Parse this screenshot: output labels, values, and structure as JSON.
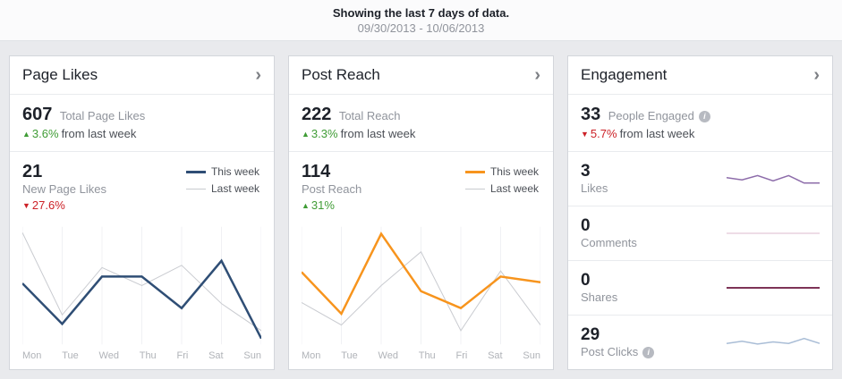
{
  "header": {
    "title": "Showing the last 7 days of data.",
    "date_range": "09/30/2013 - 10/06/2013"
  },
  "days": [
    "Mon",
    "Tue",
    "Wed",
    "Thu",
    "Fri",
    "Sat",
    "Sun"
  ],
  "legend": {
    "this_week": "This week",
    "last_week": "Last week"
  },
  "glyphs": {
    "chevron_right": "›",
    "up_arrow": "▲",
    "down_arrow": "▼",
    "info": "i"
  },
  "cards": {
    "page_likes": {
      "title": "Page Likes",
      "total": {
        "value": "607",
        "label": "Total Page Likes",
        "delta": "3.6%",
        "delta_suffix": "from last week",
        "direction": "up"
      },
      "weekly": {
        "value": "21",
        "label": "New Page Likes",
        "delta": "27.6%",
        "direction": "down"
      }
    },
    "post_reach": {
      "title": "Post Reach",
      "total": {
        "value": "222",
        "label": "Total Reach",
        "delta": "3.3%",
        "delta_suffix": "from last week",
        "direction": "up"
      },
      "weekly": {
        "value": "114",
        "label": "Post Reach",
        "delta": "31%",
        "direction": "up"
      }
    },
    "engagement": {
      "title": "Engagement",
      "total": {
        "value": "33",
        "label": "People Engaged",
        "delta": "5.7%",
        "delta_suffix": "from last week",
        "direction": "down"
      },
      "rows": [
        {
          "value": "3",
          "label": "Likes"
        },
        {
          "value": "0",
          "label": "Comments"
        },
        {
          "value": "0",
          "label": "Shares"
        },
        {
          "value": "29",
          "label": "Post Clicks"
        }
      ]
    }
  },
  "colors": {
    "positive_green": "#3f9c35",
    "negative_red": "#cc2127",
    "this_week_navy": "#2f4e75",
    "this_week_orange": "#f7941d",
    "last_week_gray": "#c9cbd0",
    "likes_purple": "#8d6caa",
    "comments_pink": "#ddb9cc",
    "shares_maroon": "#7e3457",
    "post_clicks_blue": "#a9bdd6",
    "page_background": "#e9eaed",
    "card_background": "#ffffff"
  },
  "chart_data": [
    {
      "id": "page_likes_chart",
      "type": "line",
      "title": "New Page Likes: this week vs last week",
      "categories": [
        "Mon",
        "Tue",
        "Wed",
        "Thu",
        "Fri",
        "Sat",
        "Sun"
      ],
      "ylim": [
        0,
        100
      ],
      "note": "No y-axis labels shown; values estimated on 0-100 relative scale",
      "grid": true,
      "legend_position": "top-right",
      "series": [
        {
          "name": "Last week",
          "color": "#c9cbd0",
          "width": 1,
          "values": [
            97,
            24,
            66,
            50,
            68,
            34,
            10
          ]
        },
        {
          "name": "This week",
          "color": "#2f4e75",
          "width": 2.5,
          "values": [
            52,
            16,
            58,
            58,
            30,
            72,
            3
          ]
        }
      ]
    },
    {
      "id": "post_reach_chart",
      "type": "line",
      "title": "Post Reach: this week vs last week",
      "categories": [
        "Mon",
        "Tue",
        "Wed",
        "Thu",
        "Fri",
        "Sat",
        "Sun"
      ],
      "ylim": [
        0,
        100
      ],
      "note": "No y-axis labels shown; values estimated on 0-100 relative scale",
      "grid": true,
      "legend_position": "top-right",
      "series": [
        {
          "name": "Last week",
          "color": "#c9cbd0",
          "width": 1,
          "values": [
            35,
            15,
            50,
            80,
            10,
            63,
            15
          ]
        },
        {
          "name": "This week",
          "color": "#f7941d",
          "width": 2.5,
          "values": [
            62,
            25,
            96,
            45,
            30,
            58,
            53
          ]
        }
      ]
    },
    {
      "id": "spark_likes",
      "type": "line",
      "title": "Likes sparkline",
      "ylim": [
        0,
        100
      ],
      "series": [
        {
          "name": "Likes",
          "color": "#8d6caa",
          "width": 1.5,
          "values": [
            55,
            45,
            65,
            40,
            65,
            30,
            30
          ]
        }
      ]
    },
    {
      "id": "spark_comments",
      "type": "line",
      "title": "Comments sparkline",
      "ylim": [
        0,
        100
      ],
      "series": [
        {
          "name": "Comments",
          "color": "#ddb9cc",
          "width": 1,
          "values": [
            50,
            50,
            50,
            50,
            50,
            50,
            50
          ]
        }
      ]
    },
    {
      "id": "spark_shares",
      "type": "line",
      "title": "Shares sparkline",
      "ylim": [
        0,
        100
      ],
      "series": [
        {
          "name": "Shares",
          "color": "#7e3457",
          "width": 2,
          "values": [
            50,
            50,
            50,
            50,
            50,
            50,
            50
          ]
        }
      ]
    },
    {
      "id": "spark_post_clicks",
      "type": "line",
      "title": "Post Clicks sparkline",
      "ylim": [
        0,
        100
      ],
      "series": [
        {
          "name": "Post Clicks",
          "color": "#a9bdd6",
          "width": 1.5,
          "values": [
            45,
            55,
            42,
            52,
            45,
            68,
            45
          ]
        }
      ]
    }
  ]
}
